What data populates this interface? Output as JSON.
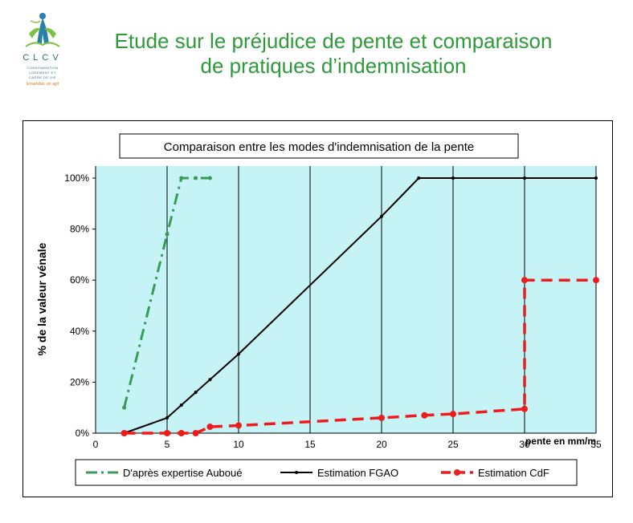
{
  "header": {
    "title_line1": "Etude sur le préjudice de pente et comparaison",
    "title_line2": "de pratiques d’indemnisation"
  },
  "logo": {
    "name": "CLCV",
    "line1": "CONSOMMATION",
    "line2": "LOGEMENT ET",
    "line3": "CADRE DE VIE",
    "tagline": "Ensemble, on agit"
  },
  "colors": {
    "title": "#2e9a3a",
    "plot_bg": "#c6f3f5",
    "series_auboue": "#3a9a5a",
    "series_fgao": "#000000",
    "series_cdf": "#ee1c1c"
  },
  "chart_data": {
    "type": "line",
    "title": "Comparaison entre les modes d'indemnisation de la pente",
    "xlabel": "pente en mm/m",
    "ylabel": "% de la valeur vénale",
    "xlim": [
      0,
      35
    ],
    "ylim": [
      0,
      100
    ],
    "xticks": [
      0,
      5,
      10,
      15,
      20,
      25,
      30,
      35
    ],
    "yticks": [
      0,
      20,
      40,
      60,
      80,
      100
    ],
    "ytick_labels": [
      "0%",
      "20%",
      "40%",
      "60%",
      "80%",
      "100%"
    ],
    "grid": "vertical lines at x ticks",
    "legend": "bottom",
    "series": [
      {
        "name": "D'après expertise Auboué",
        "style": "dash-dot",
        "x": [
          2,
          5,
          6,
          7,
          8
        ],
        "y": [
          10,
          78,
          100,
          100,
          100
        ]
      },
      {
        "name": "Estimation FGAO",
        "style": "solid",
        "x": [
          2,
          5,
          6,
          7,
          8,
          10,
          20,
          22.6,
          25,
          30,
          35
        ],
        "y": [
          0,
          6,
          11,
          16,
          21,
          31,
          85,
          100,
          100,
          100,
          100
        ]
      },
      {
        "name": "Estimation CdF",
        "style": "dashed",
        "x": [
          2,
          5,
          6,
          7,
          8,
          10,
          20,
          23,
          25,
          30,
          30,
          35
        ],
        "y": [
          0,
          0,
          0,
          0,
          2.5,
          3,
          6,
          7,
          7.5,
          9.5,
          60,
          60
        ]
      }
    ]
  }
}
